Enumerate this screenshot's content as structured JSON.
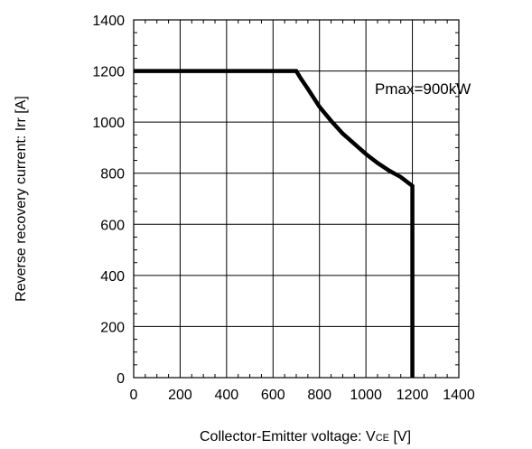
{
  "chart_data": {
    "type": "line",
    "xlabel_main": "Collector-Emitter voltage: V",
    "xlabel_sub": "CE",
    "xlabel_unit": " [V]",
    "ylabel": "Reverse recovery current: Irr [A]",
    "xlim": [
      0,
      1400
    ],
    "ylim": [
      0,
      1400
    ],
    "x_ticks": [
      0,
      200,
      400,
      600,
      800,
      1000,
      1200,
      1400
    ],
    "y_ticks": [
      0,
      200,
      400,
      600,
      800,
      1000,
      1200,
      1400
    ],
    "x_tick_labels": [
      "0",
      "200",
      "400",
      "600",
      "800",
      "1000",
      "1200",
      "1400"
    ],
    "y_tick_labels": [
      "0",
      "200",
      "400",
      "600",
      "800",
      "1000",
      "1200",
      "1400"
    ],
    "grid": true,
    "annotation": "Pmax=900kW",
    "series": [
      {
        "x": [
          0,
          700,
          720,
          750,
          800,
          850,
          900,
          950,
          1000,
          1050,
          1100,
          1150,
          1200,
          1200
        ],
        "y": [
          1200,
          1200,
          1170,
          1130,
          1060,
          1005,
          955,
          915,
          875,
          840,
          810,
          785,
          750,
          0
        ]
      }
    ]
  }
}
